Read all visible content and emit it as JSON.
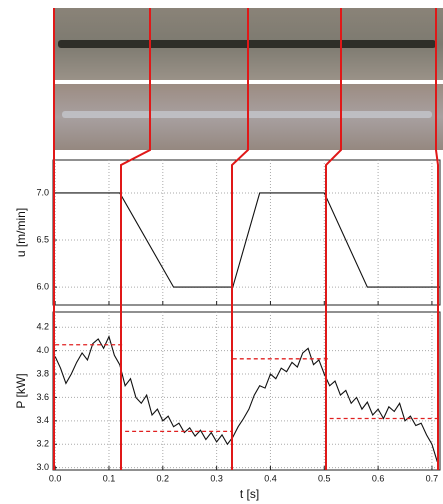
{
  "chart_data": [
    {
      "type": "line",
      "ylabel": "u [m/min]",
      "xlim": [
        -0.004,
        0.715
      ],
      "ylim": [
        5.81,
        7.35
      ],
      "xticks": [
        0,
        0.1,
        0.2,
        0.3,
        0.4,
        0.5,
        0.6,
        0.7
      ],
      "yticks": [
        {
          "value": 7,
          "label": "7.0"
        },
        6.5,
        {
          "value": 6,
          "label": "6.0"
        }
      ],
      "grid": true,
      "series": [
        {
          "color": "#111111",
          "x": [
            0,
            0.12,
            0.22,
            0.33,
            0.38,
            0.5,
            0.58,
            0.715
          ],
          "values": [
            7,
            7,
            6,
            6,
            7,
            7,
            6,
            6
          ]
        }
      ]
    },
    {
      "type": "line",
      "ylabel": "P [kW]",
      "xlabel": "t [s]",
      "xlim": [
        -0.004,
        0.715
      ],
      "ylim": [
        2.98,
        4.33
      ],
      "xticks": [
        {
          "value": 0,
          "label": "0.0"
        },
        0.1,
        0.2,
        0.3,
        0.4,
        0.5,
        0.6,
        0.7
      ],
      "yticks": [
        4.2,
        {
          "value": 4,
          "label": "4.0"
        },
        3.8,
        3.6,
        3.4,
        3.2,
        {
          "value": 3,
          "label": "3.0"
        }
      ],
      "grid": true,
      "series": [
        {
          "color": "#111111",
          "x": [
            0,
            0.01,
            0.02,
            0.03,
            0.04,
            0.05,
            0.06,
            0.07,
            0.08,
            0.09,
            0.1,
            0.11,
            0.12,
            0.13,
            0.14,
            0.15,
            0.16,
            0.17,
            0.18,
            0.19,
            0.2,
            0.21,
            0.22,
            0.23,
            0.24,
            0.25,
            0.26,
            0.27,
            0.28,
            0.29,
            0.3,
            0.31,
            0.32,
            0.33,
            0.34,
            0.35,
            0.36,
            0.37,
            0.38,
            0.39,
            0.4,
            0.41,
            0.42,
            0.43,
            0.44,
            0.45,
            0.46,
            0.47,
            0.48,
            0.49,
            0.5,
            0.51,
            0.52,
            0.53,
            0.54,
            0.55,
            0.56,
            0.57,
            0.58,
            0.59,
            0.6,
            0.61,
            0.62,
            0.63,
            0.64,
            0.65,
            0.66,
            0.67,
            0.68,
            0.69,
            0.7,
            0.71
          ],
          "values": [
            3.95,
            3.85,
            3.72,
            3.8,
            3.9,
            3.98,
            3.92,
            4.06,
            4.1,
            4.02,
            4.12,
            3.96,
            3.88,
            3.7,
            3.76,
            3.6,
            3.55,
            3.62,
            3.45,
            3.5,
            3.4,
            3.44,
            3.35,
            3.38,
            3.3,
            3.34,
            3.27,
            3.32,
            3.24,
            3.3,
            3.22,
            3.28,
            3.2,
            3.26,
            3.35,
            3.42,
            3.5,
            3.62,
            3.7,
            3.68,
            3.8,
            3.76,
            3.85,
            3.82,
            3.9,
            3.86,
            3.98,
            4.02,
            3.88,
            3.92,
            3.8,
            3.7,
            3.74,
            3.62,
            3.66,
            3.55,
            3.6,
            3.5,
            3.56,
            3.45,
            3.5,
            3.42,
            3.52,
            3.48,
            3.55,
            3.4,
            3.44,
            3.36,
            3.38,
            3.28,
            3.2,
            3.05
          ]
        }
      ],
      "reference_lines": [
        {
          "color": "#e02020",
          "x": [
            0,
            0.13
          ],
          "value": 4.05
        },
        {
          "color": "#e02020",
          "x": [
            0.13,
            0.33
          ],
          "value": 3.31
        },
        {
          "color": "#e02020",
          "x": [
            0.33,
            0.51
          ],
          "value": 3.93
        },
        {
          "color": "#e02020",
          "x": [
            0.51,
            0.715
          ],
          "value": 3.42
        }
      ]
    }
  ]
}
